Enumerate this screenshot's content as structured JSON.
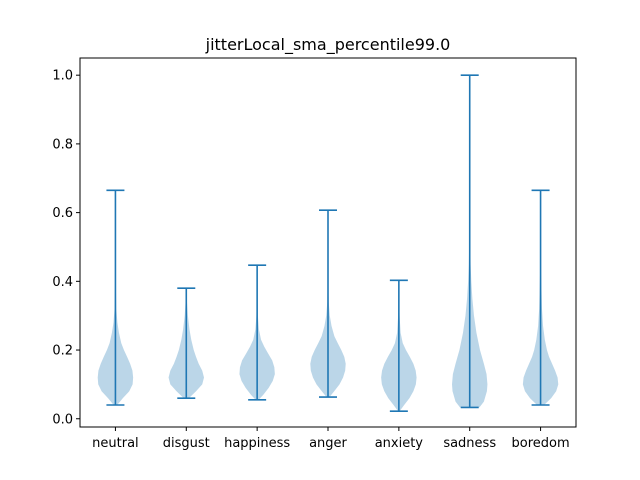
{
  "chart_data": {
    "type": "violin",
    "title": "jitterLocal_sma_percentile99.0",
    "xlabel": "",
    "ylabel": "",
    "ylim": [
      -0.024,
      1.05
    ],
    "yticks": [
      0.0,
      0.2,
      0.4,
      0.6,
      0.8,
      1.0
    ],
    "ytick_labels": [
      "0.0",
      "0.2",
      "0.4",
      "0.6",
      "0.8",
      "1.0"
    ],
    "grid": false,
    "colors": {
      "body": "#1f77b4",
      "line": "#1f77b4"
    },
    "categories": [
      "neutral",
      "disgust",
      "happiness",
      "anger",
      "anxiety",
      "sadness",
      "boredom"
    ],
    "violins": [
      {
        "name": "neutral",
        "min": 0.04,
        "max": 0.665,
        "profile": [
          [
            0.04,
            0.1
          ],
          [
            0.06,
            0.42
          ],
          [
            0.08,
            0.78
          ],
          [
            0.1,
            0.97
          ],
          [
            0.12,
            1.0
          ],
          [
            0.14,
            0.96
          ],
          [
            0.16,
            0.83
          ],
          [
            0.18,
            0.66
          ],
          [
            0.2,
            0.48
          ],
          [
            0.22,
            0.33
          ],
          [
            0.25,
            0.2
          ],
          [
            0.28,
            0.11
          ],
          [
            0.32,
            0.05
          ],
          [
            0.4,
            0.02
          ],
          [
            0.5,
            0.01
          ],
          [
            0.665,
            0.0
          ]
        ]
      },
      {
        "name": "disgust",
        "min": 0.06,
        "max": 0.38,
        "profile": [
          [
            0.06,
            0.15
          ],
          [
            0.08,
            0.55
          ],
          [
            0.1,
            0.9
          ],
          [
            0.12,
            1.0
          ],
          [
            0.14,
            0.9
          ],
          [
            0.16,
            0.7
          ],
          [
            0.18,
            0.55
          ],
          [
            0.2,
            0.42
          ],
          [
            0.23,
            0.28
          ],
          [
            0.26,
            0.18
          ],
          [
            0.3,
            0.09
          ],
          [
            0.34,
            0.04
          ],
          [
            0.38,
            0.0
          ]
        ]
      },
      {
        "name": "happiness",
        "min": 0.055,
        "max": 0.447,
        "profile": [
          [
            0.055,
            0.08
          ],
          [
            0.07,
            0.35
          ],
          [
            0.09,
            0.65
          ],
          [
            0.11,
            0.88
          ],
          [
            0.13,
            1.0
          ],
          [
            0.15,
            0.97
          ],
          [
            0.17,
            0.85
          ],
          [
            0.19,
            0.62
          ],
          [
            0.21,
            0.4
          ],
          [
            0.23,
            0.22
          ],
          [
            0.26,
            0.1
          ],
          [
            0.3,
            0.04
          ],
          [
            0.36,
            0.015
          ],
          [
            0.447,
            0.0
          ]
        ]
      },
      {
        "name": "anger",
        "min": 0.063,
        "max": 0.607,
        "profile": [
          [
            0.063,
            0.08
          ],
          [
            0.08,
            0.35
          ],
          [
            0.1,
            0.65
          ],
          [
            0.12,
            0.85
          ],
          [
            0.14,
            0.97
          ],
          [
            0.16,
            1.0
          ],
          [
            0.18,
            0.92
          ],
          [
            0.2,
            0.75
          ],
          [
            0.22,
            0.55
          ],
          [
            0.24,
            0.36
          ],
          [
            0.27,
            0.2
          ],
          [
            0.3,
            0.1
          ],
          [
            0.34,
            0.04
          ],
          [
            0.4,
            0.015
          ],
          [
            0.607,
            0.0
          ]
        ]
      },
      {
        "name": "anxiety",
        "min": 0.022,
        "max": 0.403,
        "profile": [
          [
            0.022,
            0.04
          ],
          [
            0.04,
            0.3
          ],
          [
            0.06,
            0.6
          ],
          [
            0.08,
            0.82
          ],
          [
            0.1,
            0.96
          ],
          [
            0.12,
            1.0
          ],
          [
            0.14,
            0.95
          ],
          [
            0.16,
            0.82
          ],
          [
            0.18,
            0.62
          ],
          [
            0.2,
            0.4
          ],
          [
            0.22,
            0.22
          ],
          [
            0.25,
            0.1
          ],
          [
            0.3,
            0.04
          ],
          [
            0.35,
            0.015
          ],
          [
            0.403,
            0.0
          ]
        ]
      },
      {
        "name": "sadness",
        "min": 0.033,
        "max": 1.0,
        "profile": [
          [
            0.033,
            0.55
          ],
          [
            0.05,
            0.8
          ],
          [
            0.08,
            0.97
          ],
          [
            0.1,
            1.0
          ],
          [
            0.13,
            0.95
          ],
          [
            0.16,
            0.8
          ],
          [
            0.2,
            0.58
          ],
          [
            0.25,
            0.38
          ],
          [
            0.3,
            0.24
          ],
          [
            0.35,
            0.15
          ],
          [
            0.4,
            0.09
          ],
          [
            0.45,
            0.05
          ],
          [
            0.55,
            0.02
          ],
          [
            0.7,
            0.005
          ],
          [
            1.0,
            0.0
          ]
        ]
      },
      {
        "name": "boredom",
        "min": 0.04,
        "max": 0.665,
        "profile": [
          [
            0.04,
            0.2
          ],
          [
            0.06,
            0.6
          ],
          [
            0.08,
            0.88
          ],
          [
            0.1,
            1.0
          ],
          [
            0.12,
            0.96
          ],
          [
            0.14,
            0.82
          ],
          [
            0.16,
            0.65
          ],
          [
            0.18,
            0.48
          ],
          [
            0.2,
            0.36
          ],
          [
            0.23,
            0.24
          ],
          [
            0.27,
            0.14
          ],
          [
            0.32,
            0.08
          ],
          [
            0.4,
            0.04
          ],
          [
            0.45,
            0.015
          ],
          [
            0.55,
            0.005
          ],
          [
            0.665,
            0.0
          ]
        ]
      }
    ]
  }
}
